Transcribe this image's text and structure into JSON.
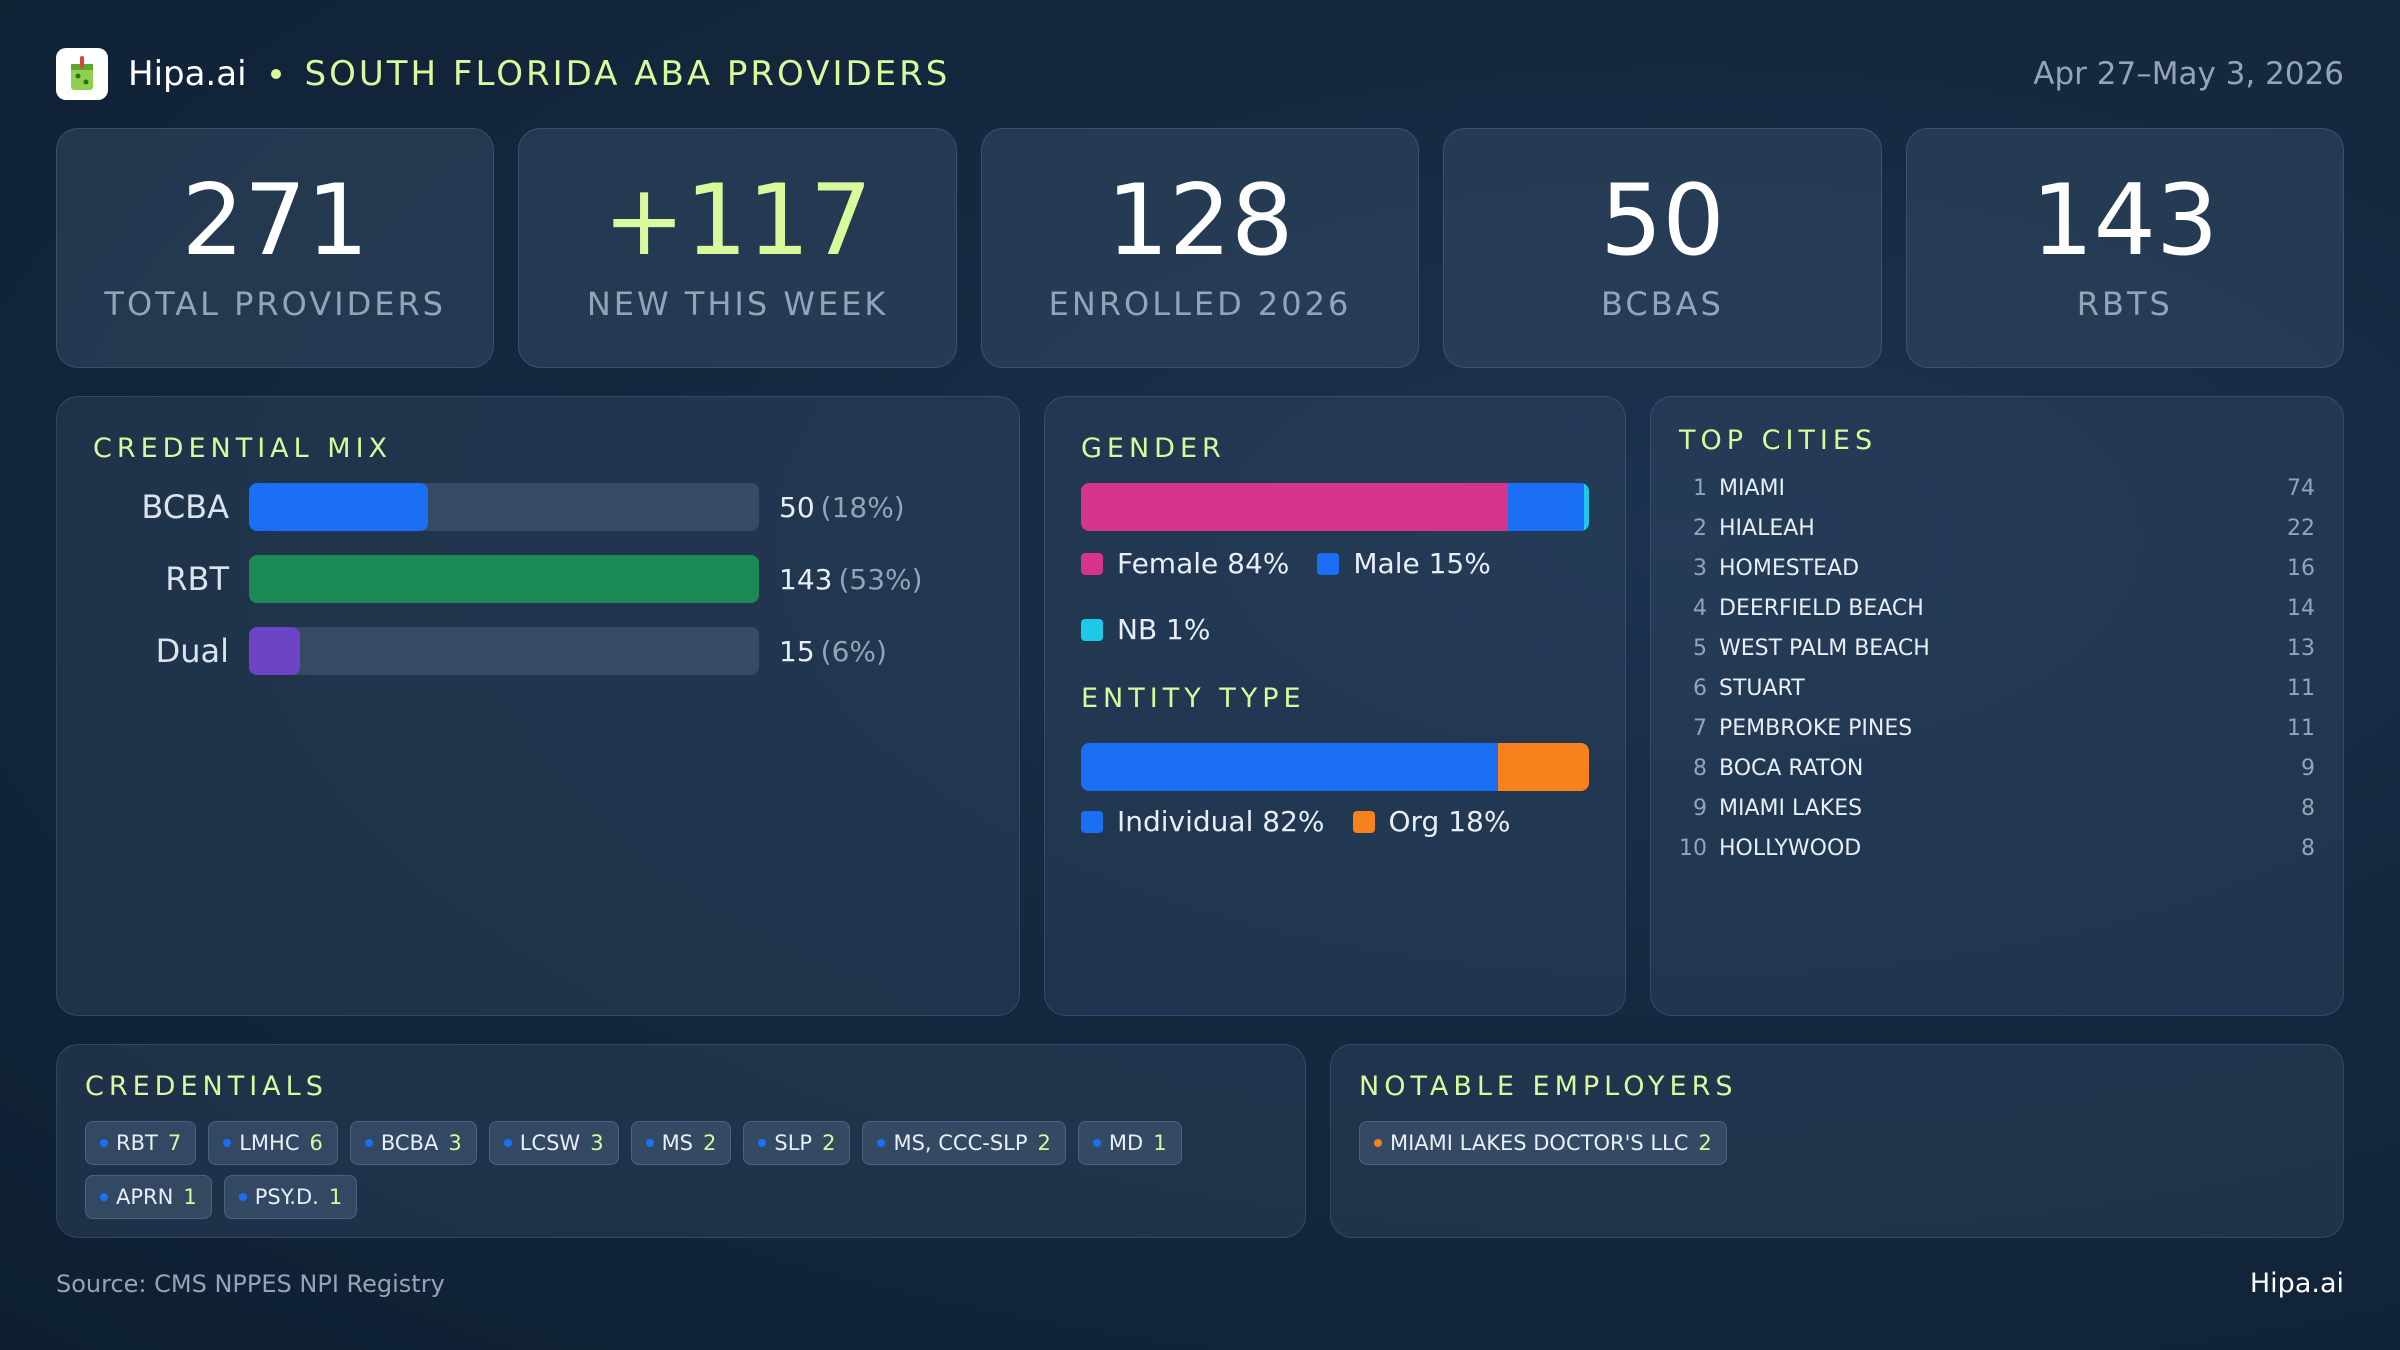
{
  "header": {
    "logo_icon": "drink-cup-icon",
    "brand": "Hipa.ai",
    "title": "SOUTH FLORIDA ABA PROVIDERS",
    "date": "Apr 27–May 3, 2026"
  },
  "kpis": [
    {
      "value": "271",
      "label": "TOTAL PROVIDERS"
    },
    {
      "value": "+117",
      "label": "NEW THIS WEEK"
    },
    {
      "value": "128",
      "label": "ENROLLED 2026"
    },
    {
      "value": "50",
      "label": "BCBAS"
    },
    {
      "value": "143",
      "label": "RBTS"
    }
  ],
  "credential_mix": {
    "title": "CREDENTIAL MIX",
    "rows": [
      {
        "label": "BCBA",
        "count": "50",
        "pct": "(18%)",
        "share": 0.35,
        "color": "#1a6ff5"
      },
      {
        "label": "RBT",
        "count": "143",
        "pct": "(53%)",
        "share": 1.0,
        "color": "#1b8a55"
      },
      {
        "label": "Dual",
        "count": "15",
        "pct": "(6%)",
        "share": 0.1,
        "color": "#6d44c6"
      }
    ]
  },
  "gender": {
    "title": "GENDER",
    "segments": [
      {
        "name": "Female",
        "label": "Female 84%",
        "percent": 84,
        "color": "#d6338a"
      },
      {
        "name": "Male",
        "label": "Male 15%",
        "percent": 15,
        "color": "#1a6ff5"
      },
      {
        "name": "NB",
        "label": "NB 1%",
        "percent": 1,
        "color": "#1ec8e8"
      }
    ]
  },
  "entity": {
    "title": "ENTITY TYPE",
    "segments": [
      {
        "name": "Individual",
        "label": "Individual 82%",
        "percent": 82,
        "color": "#1a6ff5"
      },
      {
        "name": "Org",
        "label": "Org 18%",
        "percent": 18,
        "color": "#f7811d"
      }
    ]
  },
  "cities": {
    "title": "TOP CITIES",
    "rows": [
      {
        "rank": "1",
        "name": "MIAMI",
        "count": "74"
      },
      {
        "rank": "2",
        "name": "HIALEAH",
        "count": "22"
      },
      {
        "rank": "3",
        "name": "HOMESTEAD",
        "count": "16"
      },
      {
        "rank": "4",
        "name": "DEERFIELD BEACH",
        "count": "14"
      },
      {
        "rank": "5",
        "name": "WEST PALM BEACH",
        "count": "13"
      },
      {
        "rank": "6",
        "name": "STUART",
        "count": "11"
      },
      {
        "rank": "7",
        "name": "PEMBROKE PINES",
        "count": "11"
      },
      {
        "rank": "8",
        "name": "BOCA RATON",
        "count": "9"
      },
      {
        "rank": "9",
        "name": "MIAMI LAKES",
        "count": "8"
      },
      {
        "rank": "10",
        "name": "HOLLYWOOD",
        "count": "8"
      }
    ]
  },
  "credentials": {
    "title": "CREDENTIALS",
    "dot_color": "#1a6ff5",
    "items": [
      {
        "label": "RBT",
        "count": "7"
      },
      {
        "label": "LMHC",
        "count": "6"
      },
      {
        "label": "BCBA",
        "count": "3"
      },
      {
        "label": "LCSW",
        "count": "3"
      },
      {
        "label": "MS",
        "count": "2"
      },
      {
        "label": "SLP",
        "count": "2"
      },
      {
        "label": "MS, CCC-SLP",
        "count": "2"
      },
      {
        "label": "MD",
        "count": "1"
      },
      {
        "label": "APRN",
        "count": "1"
      },
      {
        "label": "PSY.D.",
        "count": "1"
      }
    ]
  },
  "employers": {
    "title": "NOTABLE EMPLOYERS",
    "dot_color": "#f7811d",
    "items": [
      {
        "label": "MIAMI LAKES DOCTOR'S LLC",
        "count": "2"
      }
    ]
  },
  "footer": {
    "source": "Source: CMS NPPES NPI Registry",
    "brand": "Hipa.ai"
  }
}
